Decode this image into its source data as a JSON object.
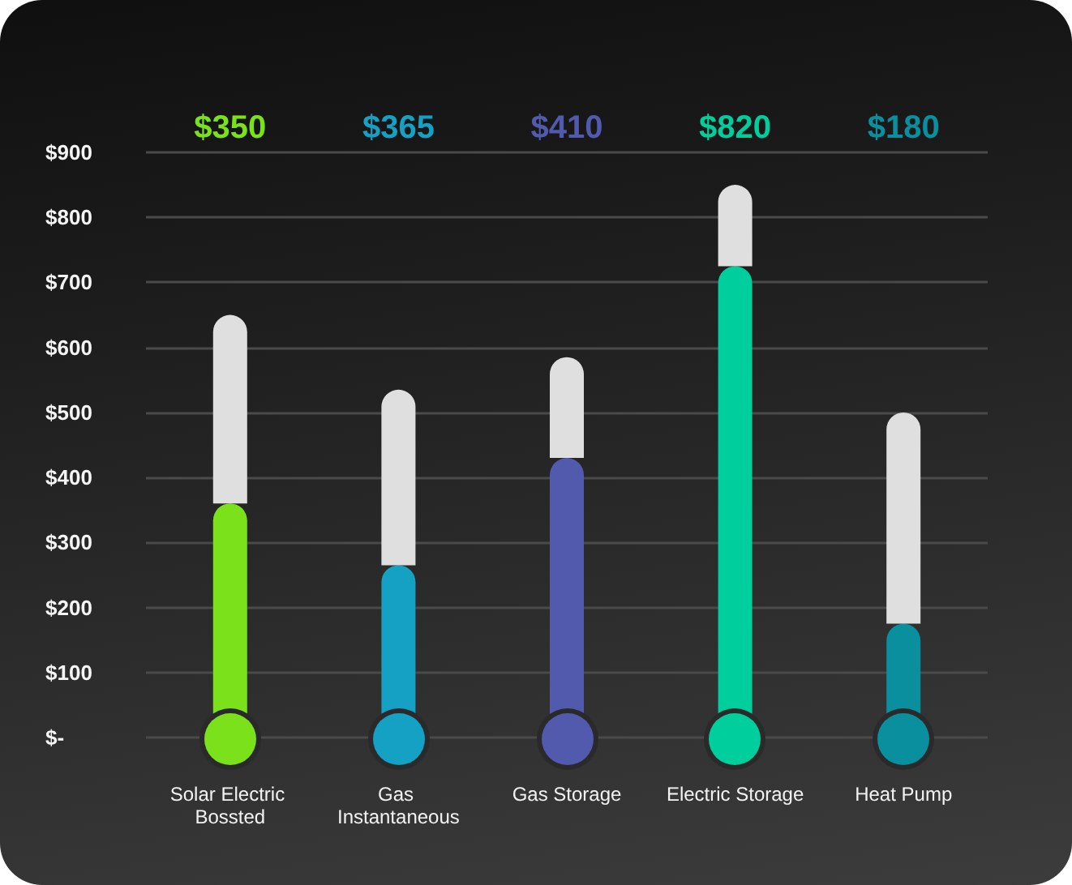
{
  "chart_data": {
    "type": "bar",
    "stacked": true,
    "categories": [
      "Solar Electric Bossted",
      "Gas Instantaneous",
      "Gas Storage",
      "Electric Storage",
      "Heat Pump"
    ],
    "series": [
      {
        "colors": [
          "#7ae11a",
          "#15a1c4",
          "#525aad",
          "#00ce9c",
          "#098f9d"
        ],
        "values": [
          360,
          265,
          430,
          725,
          175
        ]
      },
      {
        "color": "#dfdfdf",
        "values": [
          290,
          270,
          155,
          125,
          325
        ]
      }
    ],
    "annotations": [
      "$350",
      "$365",
      "$410",
      "$820",
      "$180"
    ],
    "ylim": [
      0,
      900
    ],
    "yticks": [
      {
        "value": 0,
        "label": "$-"
      },
      {
        "value": 100,
        "label": "$100"
      },
      {
        "value": 200,
        "label": "$200"
      },
      {
        "value": 300,
        "label": "$300"
      },
      {
        "value": 400,
        "label": "$400"
      },
      {
        "value": 500,
        "label": "$500"
      },
      {
        "value": 600,
        "label": "$600"
      },
      {
        "value": 700,
        "label": "$700"
      },
      {
        "value": 800,
        "label": "$800"
      },
      {
        "value": 900,
        "label": "$900"
      }
    ],
    "grid": "y"
  }
}
